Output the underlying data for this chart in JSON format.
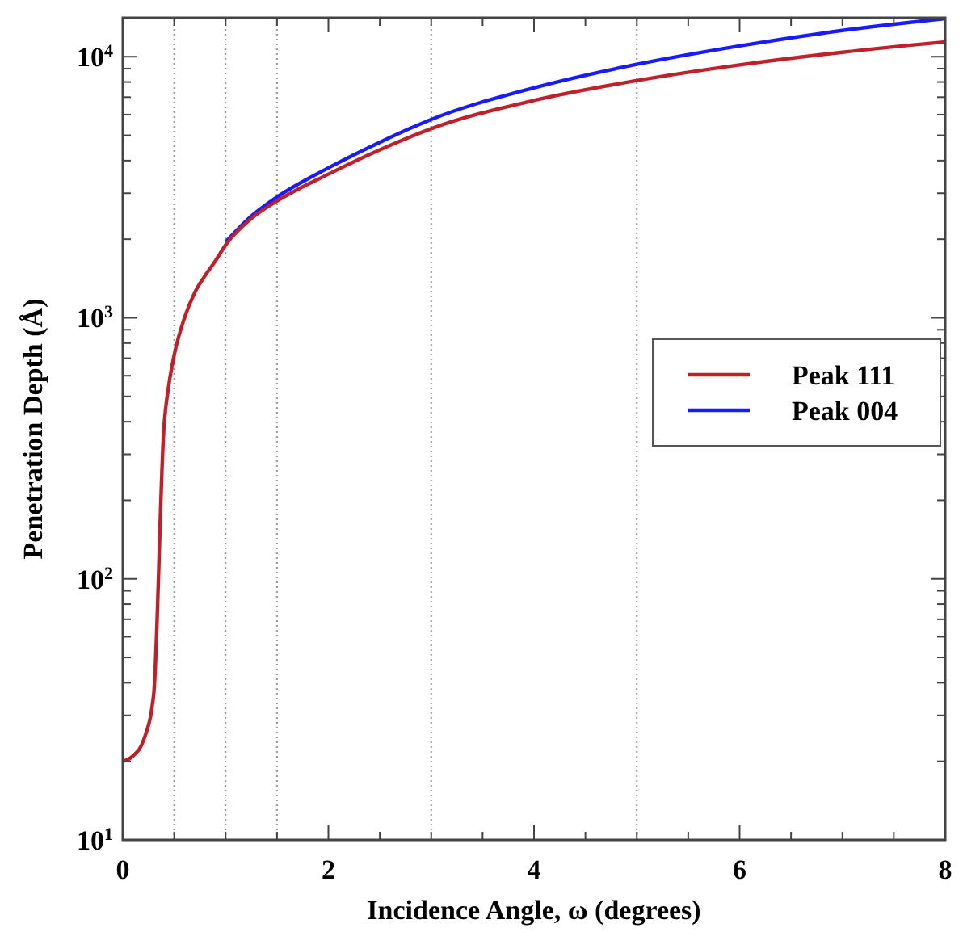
{
  "chart_data": {
    "type": "line",
    "xlabel": "Incidence Angle, ω (degrees)",
    "ylabel": "Penetration Depth (Å)",
    "log": "y",
    "xlim": [
      0,
      8
    ],
    "ylim": [
      10,
      14100
    ],
    "xticks": [
      0,
      {
        "value": 0.5,
        "label": null
      },
      {
        "value": 1,
        "label": null
      },
      {
        "value": 1.5,
        "label": null
      },
      2,
      {
        "value": 2.5,
        "label": null
      },
      {
        "value": 3,
        "label": null
      },
      {
        "value": 3.5,
        "label": null
      },
      4,
      {
        "value": 4.5,
        "label": null
      },
      {
        "value": 5,
        "label": null
      },
      {
        "value": 5.5,
        "label": null
      },
      6,
      {
        "value": 6.5,
        "label": null
      },
      {
        "value": 7,
        "label": null
      },
      {
        "value": 7.5,
        "label": null
      },
      8
    ],
    "yticks": [
      {
        "value": 10,
        "label": "10$^{1}$"
      },
      {
        "value": 20,
        "label": null
      },
      {
        "value": 30,
        "label": null
      },
      {
        "value": 40,
        "label": null
      },
      {
        "value": 50,
        "label": null
      },
      {
        "value": 60,
        "label": null
      },
      {
        "value": 70,
        "label": null
      },
      {
        "value": 80,
        "label": null
      },
      {
        "value": 90,
        "label": null
      },
      {
        "value": 100,
        "label": "10$^{2}$"
      },
      {
        "value": 200,
        "label": null
      },
      {
        "value": 300,
        "label": null
      },
      {
        "value": 400,
        "label": null
      },
      {
        "value": 500,
        "label": null
      },
      {
        "value": 600,
        "label": null
      },
      {
        "value": 700,
        "label": null
      },
      {
        "value": 800,
        "label": null
      },
      {
        "value": 900,
        "label": null
      },
      {
        "value": 1000,
        "label": "10$^{3}$"
      },
      {
        "value": 2000,
        "label": null
      },
      {
        "value": 3000,
        "label": null
      },
      {
        "value": 4000,
        "label": null
      },
      {
        "value": 5000,
        "label": null
      },
      {
        "value": 6000,
        "label": null
      },
      {
        "value": 7000,
        "label": null
      },
      {
        "value": 8000,
        "label": null
      },
      {
        "value": 9000,
        "label": null
      },
      {
        "value": 10000,
        "label": "10$^{4}$"
      }
    ],
    "grid": false,
    "legend": "right",
    "marker": "none",
    "line_style": "solid",
    "ref_lines": [
      {
        "axis": "x",
        "value": 0.5,
        "color": "#999999",
        "line_style": "dotted"
      },
      {
        "axis": "x",
        "value": 1,
        "color": "#999999",
        "line_style": "dotted"
      },
      {
        "axis": "x",
        "value": 1.5,
        "color": "#999999",
        "line_style": "dotted"
      },
      {
        "axis": "x",
        "value": 3,
        "color": "#999999",
        "line_style": "dotted"
      },
      {
        "axis": "x",
        "value": 5,
        "color": "#999999",
        "line_style": "dotted"
      }
    ],
    "series": [
      {
        "name": "Peak 004",
        "color": "#1a1aff",
        "x": [
          1,
          1.25,
          1.5,
          2,
          2.5,
          3,
          4,
          5,
          6,
          7,
          8
        ],
        "values": [
          1950,
          2450,
          2900,
          3750,
          4700,
          5750,
          7600,
          9350,
          11000,
          12600,
          14000
        ]
      },
      {
        "name": "Peak 111",
        "color": "#c0202a",
        "x": [
          0,
          0.1,
          0.2,
          0.3,
          0.4,
          0.45,
          0.5,
          0.6,
          0.7,
          0.8,
          0.9,
          1,
          1.25,
          1.5,
          2,
          2.5,
          3,
          4,
          5,
          6,
          7,
          8
        ],
        "values": [
          20,
          21,
          24,
          36,
          380,
          560,
          720,
          1000,
          1250,
          1450,
          1650,
          1900,
          2400,
          2800,
          3550,
          4400,
          5300,
          6800,
          8100,
          9300,
          10400,
          11400
        ]
      }
    ]
  }
}
